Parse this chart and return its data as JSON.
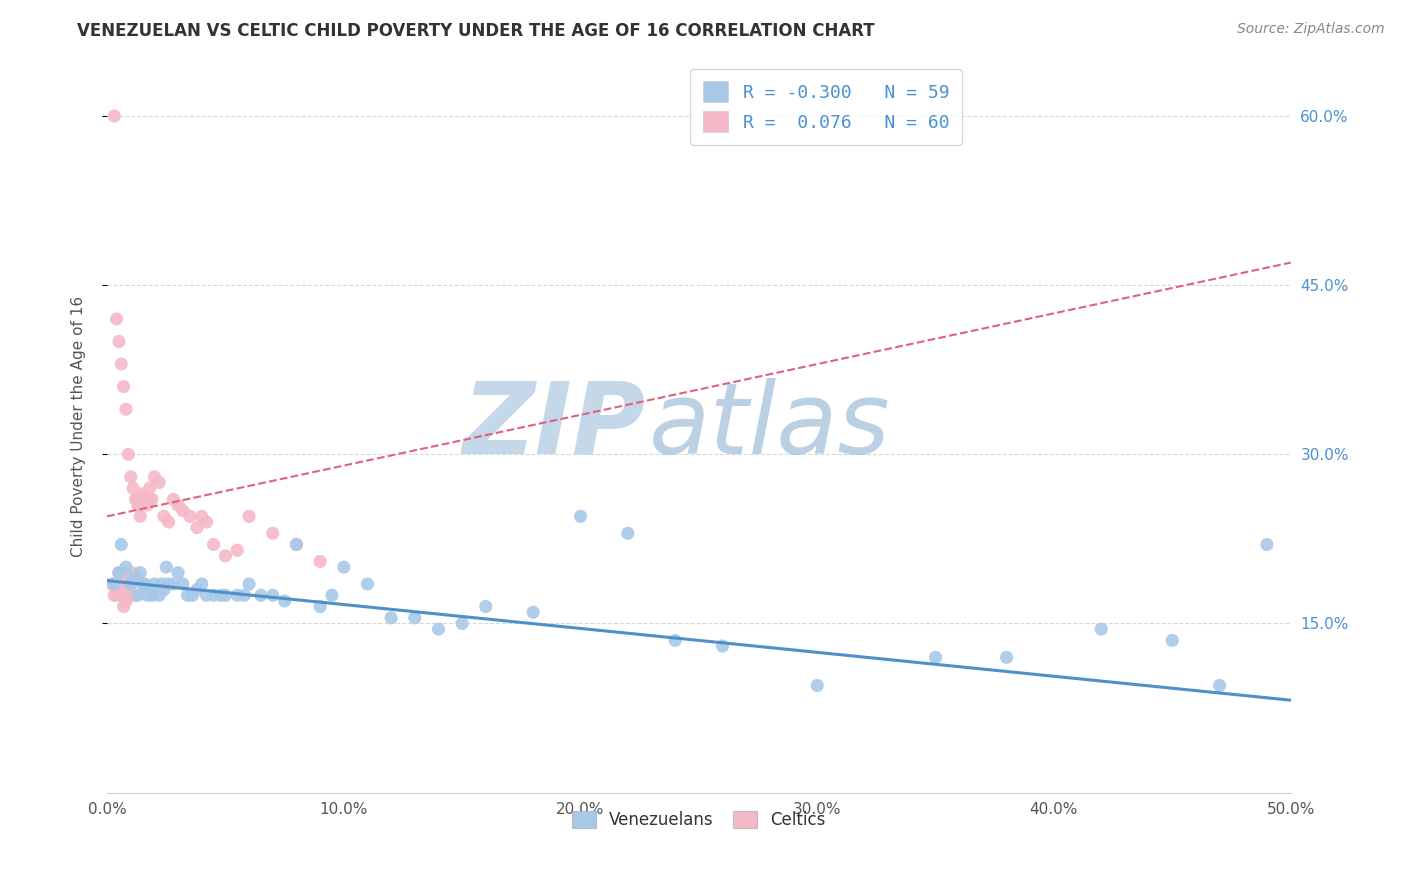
{
  "title": "VENEZUELAN VS CELTIC CHILD POVERTY UNDER THE AGE OF 16 CORRELATION CHART",
  "source": "Source: ZipAtlas.com",
  "ylabel": "Child Poverty Under the Age of 16",
  "xlim": [
    0.0,
    0.5
  ],
  "ylim": [
    0.0,
    0.65
  ],
  "xticks": [
    0.0,
    0.1,
    0.2,
    0.3,
    0.4,
    0.5
  ],
  "yticks_right": [
    0.15,
    0.3,
    0.45,
    0.6
  ],
  "ytick_labels_right": [
    "15.0%",
    "30.0%",
    "45.0%",
    "60.0%"
  ],
  "xtick_labels": [
    "0.0%",
    "10.0%",
    "20.0%",
    "30.0%",
    "40.0%",
    "50.0%"
  ],
  "legend_R_blue": "-0.300",
  "legend_N_blue": "59",
  "legend_R_pink": " 0.076",
  "legend_N_pink": "60",
  "blue_color": "#a8c8e8",
  "pink_color": "#f4b8c8",
  "blue_line_color": "#5090c8",
  "pink_line_color": "#e06080",
  "background_color": "#ffffff",
  "grid_color": "#d8d8d8",
  "venezuelan_x": [
    0.003,
    0.005,
    0.006,
    0.008,
    0.01,
    0.011,
    0.012,
    0.013,
    0.014,
    0.015,
    0.016,
    0.017,
    0.018,
    0.019,
    0.02,
    0.022,
    0.023,
    0.024,
    0.025,
    0.026,
    0.028,
    0.03,
    0.032,
    0.034,
    0.036,
    0.038,
    0.04,
    0.042,
    0.045,
    0.048,
    0.05,
    0.055,
    0.058,
    0.06,
    0.065,
    0.07,
    0.075,
    0.08,
    0.09,
    0.095,
    0.1,
    0.11,
    0.12,
    0.13,
    0.14,
    0.15,
    0.16,
    0.18,
    0.2,
    0.22,
    0.24,
    0.26,
    0.3,
    0.35,
    0.38,
    0.42,
    0.45,
    0.47,
    0.49
  ],
  "venezuelan_y": [
    0.185,
    0.195,
    0.22,
    0.2,
    0.185,
    0.19,
    0.19,
    0.175,
    0.195,
    0.185,
    0.185,
    0.175,
    0.18,
    0.175,
    0.185,
    0.175,
    0.185,
    0.18,
    0.2,
    0.185,
    0.185,
    0.195,
    0.185,
    0.175,
    0.175,
    0.18,
    0.185,
    0.175,
    0.175,
    0.175,
    0.175,
    0.175,
    0.175,
    0.185,
    0.175,
    0.175,
    0.17,
    0.22,
    0.165,
    0.175,
    0.2,
    0.185,
    0.155,
    0.155,
    0.145,
    0.15,
    0.165,
    0.16,
    0.245,
    0.23,
    0.135,
    0.13,
    0.095,
    0.12,
    0.12,
    0.145,
    0.135,
    0.095,
    0.22
  ],
  "celtic_x": [
    0.002,
    0.003,
    0.003,
    0.004,
    0.004,
    0.005,
    0.005,
    0.006,
    0.006,
    0.007,
    0.007,
    0.008,
    0.008,
    0.009,
    0.009,
    0.01,
    0.01,
    0.011,
    0.011,
    0.012,
    0.012,
    0.013,
    0.013,
    0.014,
    0.014,
    0.015,
    0.015,
    0.016,
    0.017,
    0.018,
    0.018,
    0.019,
    0.02,
    0.022,
    0.024,
    0.026,
    0.028,
    0.03,
    0.032,
    0.035,
    0.038,
    0.04,
    0.042,
    0.045,
    0.05,
    0.055,
    0.06,
    0.07,
    0.08,
    0.09,
    0.003,
    0.004,
    0.005,
    0.006,
    0.007,
    0.008,
    0.009,
    0.01,
    0.011,
    0.012
  ],
  "celtic_y": [
    0.185,
    0.175,
    0.185,
    0.175,
    0.185,
    0.185,
    0.195,
    0.185,
    0.175,
    0.195,
    0.165,
    0.185,
    0.17,
    0.175,
    0.19,
    0.185,
    0.19,
    0.195,
    0.175,
    0.19,
    0.175,
    0.26,
    0.255,
    0.245,
    0.255,
    0.265,
    0.26,
    0.26,
    0.255,
    0.27,
    0.26,
    0.26,
    0.28,
    0.275,
    0.245,
    0.24,
    0.26,
    0.255,
    0.25,
    0.245,
    0.235,
    0.245,
    0.24,
    0.22,
    0.21,
    0.215,
    0.245,
    0.23,
    0.22,
    0.205,
    0.6,
    0.42,
    0.4,
    0.38,
    0.36,
    0.34,
    0.3,
    0.28,
    0.27,
    0.26
  ]
}
